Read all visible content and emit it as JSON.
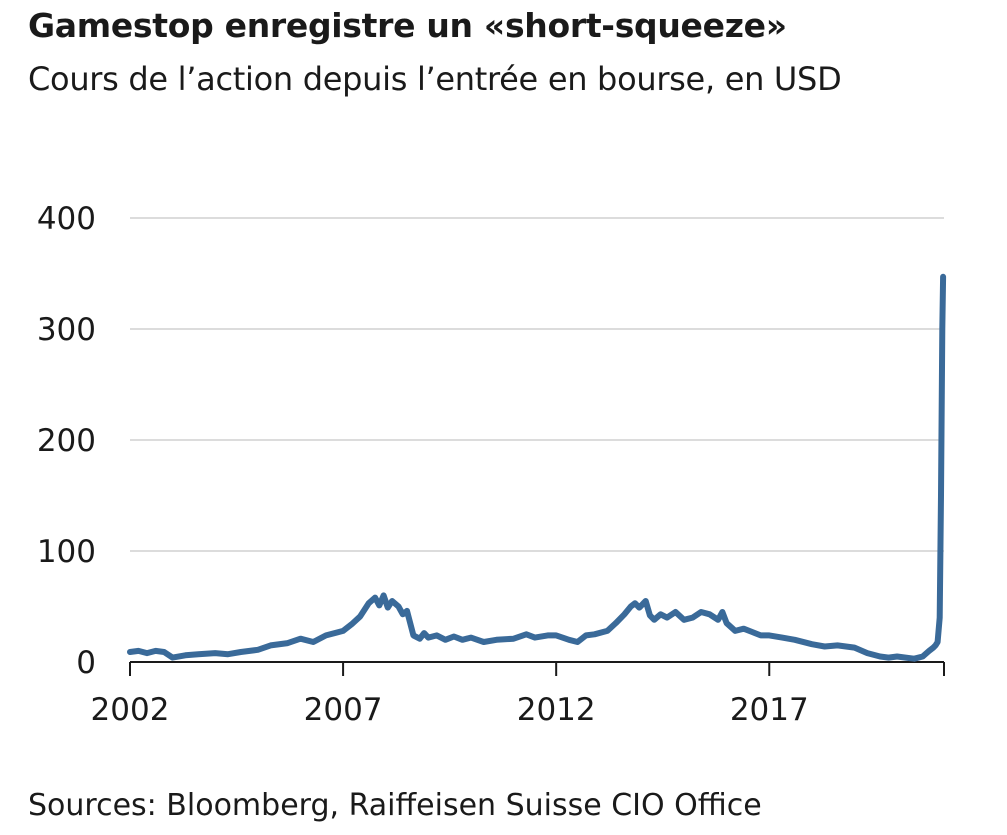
{
  "chart_data": {
    "type": "line",
    "title": "Gamestop enregistre un «short-squeeze»",
    "subtitle": "Cours de l’action depuis l’entrée en bourse, en USD",
    "source": "Sources: Bloomberg, Raiffeisen Suisse CIO Office",
    "xlim": [
      2002,
      2021.1
    ],
    "ylim": [
      0,
      400
    ],
    "x_ticks": [
      2002,
      2007,
      2012,
      2017
    ],
    "x_tick_labels": [
      "2002",
      "2007",
      "2012",
      "2017"
    ],
    "y_ticks": [
      0,
      100,
      200,
      300,
      400
    ],
    "y_tick_labels": [
      "0",
      "100",
      "200",
      "300",
      "400"
    ],
    "grid": "horizontal",
    "line_color": "#3a6a99",
    "series": [
      {
        "x": [
          2002.0,
          2002.2,
          2002.4,
          2002.6,
          2002.8,
          2003.0,
          2003.3,
          2003.6,
          2004.0,
          2004.3,
          2004.6,
          2005.0,
          2005.3,
          2005.7,
          2006.0,
          2006.3,
          2006.6,
          2007.0,
          2007.2,
          2007.4,
          2007.6,
          2007.75,
          2007.85,
          2007.95,
          2008.05,
          2008.15,
          2008.3,
          2008.4,
          2008.5,
          2008.65,
          2008.8,
          2008.9,
          2009.0,
          2009.2,
          2009.4,
          2009.6,
          2009.8,
          2010.0,
          2010.3,
          2010.6,
          2011.0,
          2011.3,
          2011.5,
          2011.8,
          2012.0,
          2012.3,
          2012.5,
          2012.7,
          2012.9,
          2013.2,
          2013.4,
          2013.6,
          2013.75,
          2013.85,
          2013.95,
          2014.1,
          2014.2,
          2014.3,
          2014.45,
          2014.6,
          2014.8,
          2015.0,
          2015.2,
          2015.4,
          2015.6,
          2015.8,
          2015.9,
          2016.0,
          2016.2,
          2016.4,
          2016.6,
          2016.8,
          2017.0,
          2017.3,
          2017.6,
          2018.0,
          2018.3,
          2018.6,
          2019.0,
          2019.3,
          2019.6,
          2019.8,
          2020.0,
          2020.2,
          2020.4,
          2020.6,
          2020.75,
          2020.85,
          2020.9,
          2020.95,
          2021.0,
          2021.03,
          2021.06,
          2021.08
        ],
        "y": [
          9,
          10,
          8,
          10,
          9,
          4,
          6,
          7,
          8,
          7,
          9,
          11,
          15,
          17,
          21,
          18,
          24,
          28,
          34,
          41,
          53,
          58,
          51,
          60,
          49,
          55,
          50,
          43,
          46,
          24,
          21,
          26,
          22,
          24,
          20,
          23,
          20,
          22,
          18,
          20,
          21,
          25,
          22,
          24,
          24,
          20,
          18,
          24,
          25,
          28,
          35,
          43,
          50,
          53,
          49,
          55,
          42,
          38,
          43,
          40,
          45,
          38,
          40,
          45,
          43,
          38,
          45,
          35,
          28,
          30,
          27,
          24,
          24,
          22,
          20,
          16,
          14,
          15,
          13,
          8,
          5,
          4,
          5,
          4,
          3,
          5,
          10,
          13,
          15,
          18,
          40,
          150,
          300,
          347
        ],
        "color": "#3a6a99"
      }
    ]
  }
}
